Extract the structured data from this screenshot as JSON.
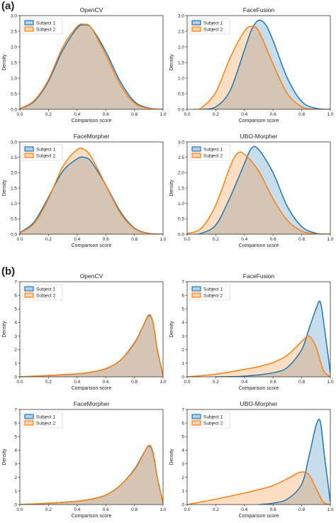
{
  "figure": {
    "panel_labels": [
      "(a)",
      "(b)"
    ],
    "colors": {
      "subject1": "#1f77b4",
      "subject2": "#ff7f0e"
    }
  },
  "chart_data": [
    {
      "type": "area",
      "panel": "(a)",
      "title": "OpenCV",
      "xlabel": "Comparison score",
      "ylabel": "Density",
      "xlim": [
        0.0,
        1.0
      ],
      "ylim": [
        0,
        3.0
      ],
      "xticks": [
        "0.0",
        "0.2",
        "0.4",
        "0.6",
        "0.8",
        "1.0"
      ],
      "yticks": [
        "0.0",
        "0.5",
        "1.0",
        "1.5",
        "2.0",
        "2.5",
        "3.0"
      ],
      "legend": "upper-left",
      "series": [
        {
          "name": "Subject 1",
          "x": [
            0.0,
            0.1,
            0.2,
            0.3,
            0.4,
            0.45,
            0.5,
            0.6,
            0.7,
            0.8,
            0.9,
            1.0
          ],
          "y": [
            0.02,
            0.25,
            0.9,
            1.9,
            2.6,
            2.7,
            2.6,
            1.85,
            0.9,
            0.25,
            0.04,
            0.0
          ]
        },
        {
          "name": "Subject 2",
          "x": [
            0.0,
            0.1,
            0.2,
            0.3,
            0.4,
            0.45,
            0.5,
            0.6,
            0.7,
            0.8,
            0.9,
            1.0
          ],
          "y": [
            0.02,
            0.28,
            0.95,
            2.0,
            2.65,
            2.72,
            2.6,
            1.75,
            0.8,
            0.2,
            0.03,
            0.0
          ]
        }
      ]
    },
    {
      "type": "area",
      "panel": "(a)",
      "title": "FaceFusion",
      "xlabel": "Comparison score",
      "ylabel": "Density",
      "xlim": [
        0.0,
        1.0
      ],
      "ylim": [
        0,
        3.0
      ],
      "xticks": [
        "0.0",
        "0.2",
        "0.4",
        "0.6",
        "0.8",
        "1.0"
      ],
      "yticks": [
        "0.0",
        "0.5",
        "1.0",
        "1.5",
        "2.0",
        "2.5",
        "3.0"
      ],
      "legend": "upper-left",
      "series": [
        {
          "name": "Subject 1",
          "x": [
            0.1,
            0.2,
            0.3,
            0.4,
            0.45,
            0.5,
            0.55,
            0.6,
            0.7,
            0.8,
            0.9,
            1.0
          ],
          "y": [
            0.0,
            0.08,
            0.6,
            1.9,
            2.55,
            2.85,
            2.7,
            2.2,
            1.0,
            0.25,
            0.03,
            0.0
          ]
        },
        {
          "name": "Subject 2",
          "x": [
            0.05,
            0.1,
            0.2,
            0.3,
            0.4,
            0.45,
            0.5,
            0.6,
            0.7,
            0.8,
            0.9,
            1.0
          ],
          "y": [
            0.0,
            0.05,
            0.55,
            1.65,
            2.5,
            2.65,
            2.5,
            1.45,
            0.5,
            0.08,
            0.0,
            0.0
          ]
        }
      ]
    },
    {
      "type": "area",
      "panel": "(a)",
      "title": "FaceMorpher",
      "xlabel": "Comparison score",
      "ylabel": "Density",
      "xlim": [
        0.0,
        1.0
      ],
      "ylim": [
        0,
        3.0
      ],
      "xticks": [
        "0.0",
        "0.2",
        "0.4",
        "0.6",
        "0.8",
        "1.0"
      ],
      "yticks": [
        "0.0",
        "0.5",
        "1.0",
        "1.5",
        "2.0",
        "2.5",
        "3.0"
      ],
      "legend": "upper-left",
      "series": [
        {
          "name": "Subject 1",
          "x": [
            0.0,
            0.1,
            0.2,
            0.3,
            0.4,
            0.45,
            0.5,
            0.6,
            0.7,
            0.8,
            0.9,
            1.0
          ],
          "y": [
            0.05,
            0.4,
            1.2,
            2.05,
            2.45,
            2.5,
            2.35,
            1.6,
            0.75,
            0.2,
            0.03,
            0.0
          ]
        },
        {
          "name": "Subject 2",
          "x": [
            0.0,
            0.1,
            0.2,
            0.3,
            0.4,
            0.45,
            0.5,
            0.6,
            0.7,
            0.8,
            0.9,
            1.0
          ],
          "y": [
            0.04,
            0.35,
            1.15,
            2.2,
            2.75,
            2.75,
            2.5,
            1.6,
            0.7,
            0.18,
            0.02,
            0.0
          ]
        }
      ]
    },
    {
      "type": "area",
      "panel": "(a)",
      "title": "UBO-Morpher",
      "xlabel": "Comparison score",
      "ylabel": "Density",
      "xlim": [
        0.0,
        1.0
      ],
      "ylim": [
        0,
        3.0
      ],
      "xticks": [
        "0.0",
        "0.2",
        "0.4",
        "0.6",
        "0.8",
        "1.0"
      ],
      "yticks": [
        "0.0",
        "0.5",
        "1.0",
        "1.5",
        "2.0",
        "2.5",
        "3.0"
      ],
      "legend": "upper-left",
      "series": [
        {
          "name": "Subject 1",
          "x": [
            0.05,
            0.1,
            0.2,
            0.3,
            0.4,
            0.45,
            0.5,
            0.6,
            0.7,
            0.8,
            0.9,
            1.0
          ],
          "y": [
            0.0,
            0.03,
            0.3,
            1.2,
            2.3,
            2.8,
            2.75,
            2.0,
            0.9,
            0.25,
            0.03,
            0.0
          ]
        },
        {
          "name": "Subject 2",
          "x": [
            0.0,
            0.1,
            0.2,
            0.3,
            0.35,
            0.4,
            0.5,
            0.6,
            0.7,
            0.8,
            0.9,
            1.0
          ],
          "y": [
            0.02,
            0.2,
            0.95,
            2.2,
            2.62,
            2.6,
            2.05,
            1.15,
            0.45,
            0.1,
            0.01,
            0.0
          ]
        }
      ]
    },
    {
      "type": "area",
      "panel": "(b)",
      "title": "OpenCV",
      "xlabel": "Comparison score",
      "ylabel": "Density",
      "xlim": [
        0.0,
        1.0
      ],
      "ylim": [
        0,
        7
      ],
      "xticks": [
        "0.0",
        "0.2",
        "0.4",
        "0.6",
        "0.8",
        "1.0"
      ],
      "yticks": [
        "0",
        "1",
        "2",
        "3",
        "4",
        "5",
        "6",
        "7"
      ],
      "legend": "upper-left",
      "series": [
        {
          "name": "Subject 1",
          "x": [
            0.0,
            0.2,
            0.4,
            0.5,
            0.6,
            0.7,
            0.8,
            0.85,
            0.9,
            0.93,
            0.96,
            1.0
          ],
          "y": [
            0.0,
            0.1,
            0.22,
            0.35,
            0.6,
            1.2,
            2.5,
            3.5,
            4.5,
            4.0,
            2.0,
            0.1
          ]
        },
        {
          "name": "Subject 2",
          "x": [
            0.0,
            0.2,
            0.4,
            0.5,
            0.6,
            0.7,
            0.8,
            0.85,
            0.9,
            0.93,
            0.96,
            1.0
          ],
          "y": [
            0.0,
            0.1,
            0.22,
            0.35,
            0.6,
            1.2,
            2.45,
            3.5,
            4.55,
            4.0,
            2.0,
            0.1
          ]
        }
      ]
    },
    {
      "type": "area",
      "panel": "(b)",
      "title": "FaceFusion",
      "xlabel": "Comparison score",
      "ylabel": "Density",
      "xlim": [
        0.0,
        1.0
      ],
      "ylim": [
        0,
        7
      ],
      "xticks": [
        "0.0",
        "0.2",
        "0.4",
        "0.6",
        "0.8",
        "1.0"
      ],
      "yticks": [
        "0",
        "1",
        "2",
        "3",
        "4",
        "5",
        "6",
        "7"
      ],
      "legend": "upper-left",
      "series": [
        {
          "name": "Subject 1",
          "x": [
            0.2,
            0.4,
            0.6,
            0.7,
            0.8,
            0.85,
            0.9,
            0.93,
            0.96,
            1.0
          ],
          "y": [
            0.0,
            0.05,
            0.3,
            0.7,
            2.0,
            3.5,
            5.0,
            5.5,
            3.5,
            0.3
          ]
        },
        {
          "name": "Subject 2",
          "x": [
            0.0,
            0.2,
            0.4,
            0.5,
            0.6,
            0.7,
            0.8,
            0.85,
            0.9,
            0.95,
            1.0
          ],
          "y": [
            0.0,
            0.2,
            0.55,
            0.75,
            1.05,
            1.6,
            2.6,
            3.0,
            2.2,
            0.5,
            0.0
          ]
        }
      ]
    },
    {
      "type": "area",
      "panel": "(b)",
      "title": "FaceMorpher",
      "xlabel": "Comparison score",
      "ylabel": "Density",
      "xlim": [
        0.0,
        1.0
      ],
      "ylim": [
        0,
        7
      ],
      "xticks": [
        "0.0",
        "0.2",
        "0.4",
        "0.6",
        "0.8",
        "1.0"
      ],
      "yticks": [
        "0",
        "1",
        "2",
        "3",
        "4",
        "5",
        "6",
        "7"
      ],
      "legend": "upper-left",
      "series": [
        {
          "name": "Subject 1",
          "x": [
            0.0,
            0.2,
            0.4,
            0.5,
            0.6,
            0.7,
            0.8,
            0.85,
            0.9,
            0.93,
            0.96,
            1.0
          ],
          "y": [
            0.0,
            0.1,
            0.25,
            0.4,
            0.7,
            1.4,
            2.6,
            3.5,
            4.3,
            3.8,
            2.0,
            0.1
          ]
        },
        {
          "name": "Subject 2",
          "x": [
            0.0,
            0.2,
            0.4,
            0.5,
            0.6,
            0.7,
            0.8,
            0.85,
            0.9,
            0.93,
            0.96,
            1.0
          ],
          "y": [
            0.0,
            0.1,
            0.25,
            0.4,
            0.7,
            1.4,
            2.55,
            3.45,
            4.35,
            3.85,
            2.0,
            0.1
          ]
        }
      ]
    },
    {
      "type": "area",
      "panel": "(b)",
      "title": "UBO-Morpher",
      "xlabel": "Comparison score",
      "ylabel": "Density",
      "xlim": [
        0.0,
        1.0
      ],
      "ylim": [
        0,
        7
      ],
      "xticks": [
        "0.0",
        "0.2",
        "0.4",
        "0.6",
        "0.8",
        "1.0"
      ],
      "yticks": [
        "0",
        "1",
        "2",
        "3",
        "4",
        "5",
        "6",
        "7"
      ],
      "legend": "upper-left",
      "series": [
        {
          "name": "Subject 1",
          "x": [
            0.5,
            0.6,
            0.7,
            0.8,
            0.85,
            0.9,
            0.93,
            0.96,
            1.0
          ],
          "y": [
            0.0,
            0.1,
            0.4,
            1.5,
            3.5,
            5.8,
            6.1,
            3.5,
            0.2
          ]
        },
        {
          "name": "Subject 2",
          "x": [
            0.0,
            0.2,
            0.4,
            0.5,
            0.6,
            0.7,
            0.75,
            0.8,
            0.85,
            0.9,
            0.95,
            1.0
          ],
          "y": [
            0.0,
            0.4,
            0.85,
            1.1,
            1.4,
            1.9,
            2.2,
            2.4,
            2.2,
            1.2,
            0.2,
            0.0
          ]
        }
      ]
    }
  ]
}
